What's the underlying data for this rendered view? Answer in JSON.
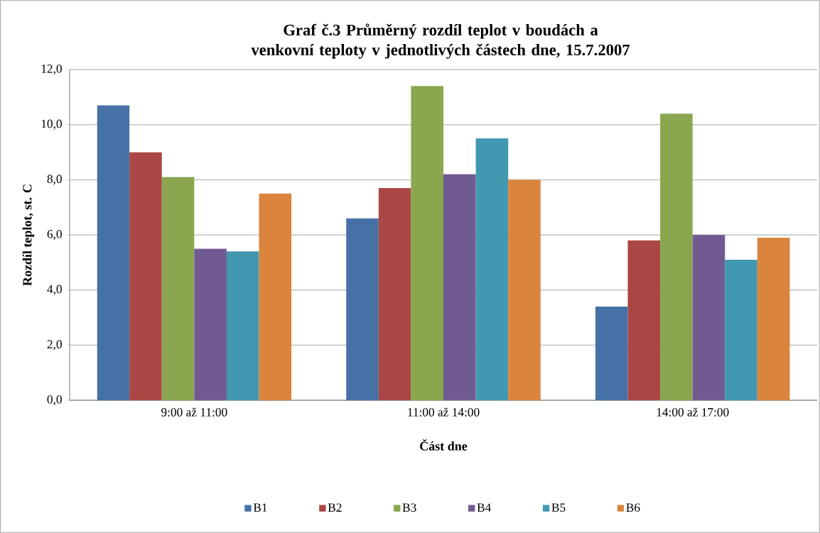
{
  "chart_data": {
    "type": "bar",
    "title": "Graf č.3 Průměrný rozdíl  teplot v boudách a venkovní teploty v jednotlivých částech dne, 15.7.2007",
    "xlabel": "Část dne",
    "ylabel": "Rozdíl teplot, st. C",
    "categories": [
      "9:00 až 11:00",
      "11:00 až 14:00",
      "14:00 až 17:00"
    ],
    "series": [
      {
        "name": "B1",
        "color": "#4571a7",
        "values": [
          10.7,
          6.6,
          3.4
        ]
      },
      {
        "name": "B2",
        "color": "#aa4644",
        "values": [
          9.0,
          7.7,
          5.8
        ]
      },
      {
        "name": "B3",
        "color": "#8aa64f",
        "values": [
          8.1,
          11.4,
          10.4
        ]
      },
      {
        "name": "B4",
        "color": "#715a92",
        "values": [
          5.5,
          8.2,
          6.0
        ]
      },
      {
        "name": "B5",
        "color": "#4298b0",
        "values": [
          5.4,
          9.5,
          5.1
        ]
      },
      {
        "name": "B6",
        "color": "#db843d",
        "values": [
          7.5,
          8.0,
          5.9
        ]
      }
    ],
    "ylim": [
      0,
      12
    ],
    "yticks": [
      {
        "value": 0,
        "label": "0,0"
      },
      {
        "value": 2,
        "label": "2,0"
      },
      {
        "value": 4,
        "label": "4,0"
      },
      {
        "value": 6,
        "label": "6,0"
      },
      {
        "value": 8,
        "label": "8,0"
      },
      {
        "value": 10,
        "label": "10,0"
      },
      {
        "value": 12,
        "label": "12,0"
      }
    ],
    "grid": "y",
    "legend": "bottom"
  }
}
